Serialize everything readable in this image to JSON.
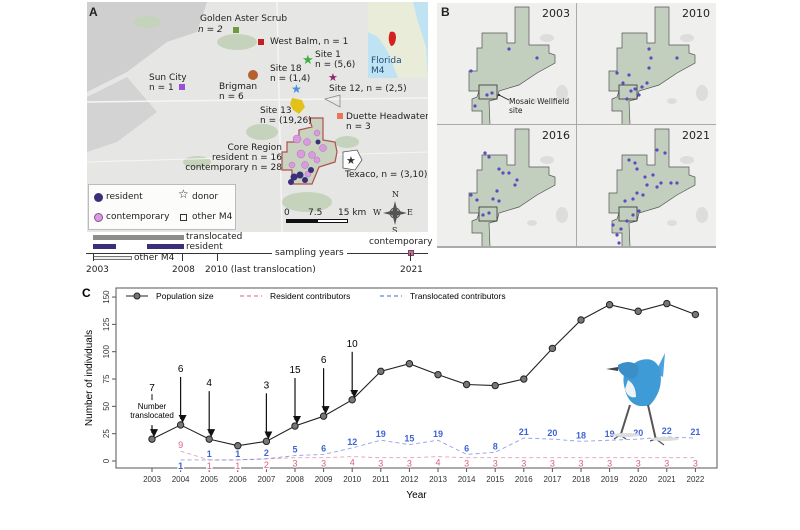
{
  "panelA": {
    "letter": "A",
    "sites": {
      "golden_aster": {
        "name": "Golden Aster Scrub",
        "n": "n = 2"
      },
      "west_balm": "West Balm, n = 1",
      "site1": {
        "name": "Site 1",
        "n": "n = (5,6)"
      },
      "site18": {
        "name": "Site 18",
        "n": "n = (1,4)"
      },
      "site12": "Site 12, n = (2,5)",
      "sun_city": {
        "name": "Sun City",
        "n": "n = 1"
      },
      "brigman": {
        "name": "Brigman",
        "n": "n = 6"
      },
      "site13": {
        "name": "Site 13",
        "n": "n = (19,26)"
      },
      "duette": {
        "name": "Duette Headwaters",
        "n": "n = 3"
      },
      "core": {
        "name": "Core Region",
        "resident": "resident n = 16",
        "contemporary": "contemporary n = 28"
      },
      "texaco": "Texaco, n = (3,10)"
    },
    "inset": {
      "line1": "Florida",
      "line2": "M4"
    },
    "legend": {
      "resident": "resident",
      "donor": "donor",
      "contemporary": "contemporary",
      "other": "other M4"
    },
    "scale": {
      "t0": "0",
      "t1": "7.5",
      "t2": "15 km"
    },
    "compass": {
      "n": "N",
      "s": "S",
      "e": "E",
      "w": "W"
    },
    "timeline": {
      "translocated": "translocated",
      "resident": "resident",
      "other": "other M4",
      "sampling": "sampling years",
      "contemporary": "contemporary",
      "y2003": "2003",
      "y2008": "2008",
      "y2010": "2010 (last translocation)",
      "y2021": "2021"
    },
    "colors": {
      "resident": "#3b2f7a",
      "contemporary": "#d99be0",
      "core_fill": "#c9d3bf",
      "core_border": "#b05050"
    }
  },
  "panelB": {
    "letter": "B",
    "years": [
      "2003",
      "2010",
      "2016",
      "2021"
    ],
    "annotation": {
      "line1": "Mosaic Wellfield",
      "line2": "site"
    },
    "colors": {
      "park": "#c3cfbe",
      "dot": "#5a4bbf"
    }
  },
  "chart_data": {
    "type": "line",
    "panel_letter": "C",
    "xlabel": "Year",
    "ylabel": "Number of individuals",
    "ylim": [
      0,
      150
    ],
    "yticks": [
      0,
      25,
      50,
      75,
      100,
      125,
      150
    ],
    "x": [
      2003,
      2004,
      2005,
      2006,
      2007,
      2008,
      2009,
      2010,
      2011,
      2012,
      2013,
      2014,
      2015,
      2016,
      2017,
      2018,
      2019,
      2020,
      2021,
      2022
    ],
    "series": [
      {
        "name": "Population size",
        "color": "#222222",
        "style": "solid-points",
        "values": [
          20,
          33,
          20,
          14,
          18,
          32,
          41,
          56,
          82,
          89,
          79,
          70,
          69,
          75,
          103,
          129,
          143,
          137,
          144,
          134
        ]
      },
      {
        "name": "Resident contributors",
        "color": "#d9607a",
        "style": "dashed-labels",
        "values": [
          null,
          9,
          1,
          1,
          2,
          3,
          3,
          4,
          3,
          3,
          4,
          3,
          3,
          3,
          3,
          3,
          3,
          3,
          3,
          3
        ]
      },
      {
        "name": "Translocated contributors",
        "color": "#3f64d6",
        "style": "dashed-labels",
        "values": [
          null,
          1,
          1,
          1,
          2,
          5,
          6,
          12,
          19,
          15,
          19,
          6,
          8,
          21,
          20,
          18,
          19,
          20,
          22,
          21
        ]
      }
    ],
    "translocations": {
      "caption": [
        "Number",
        "translocated"
      ],
      "years": [
        2003,
        2004,
        2005,
        2007,
        2008,
        2009,
        2010
      ],
      "counts": [
        7,
        6,
        4,
        3,
        15,
        6,
        10
      ]
    },
    "legend_placement": "top-left"
  }
}
